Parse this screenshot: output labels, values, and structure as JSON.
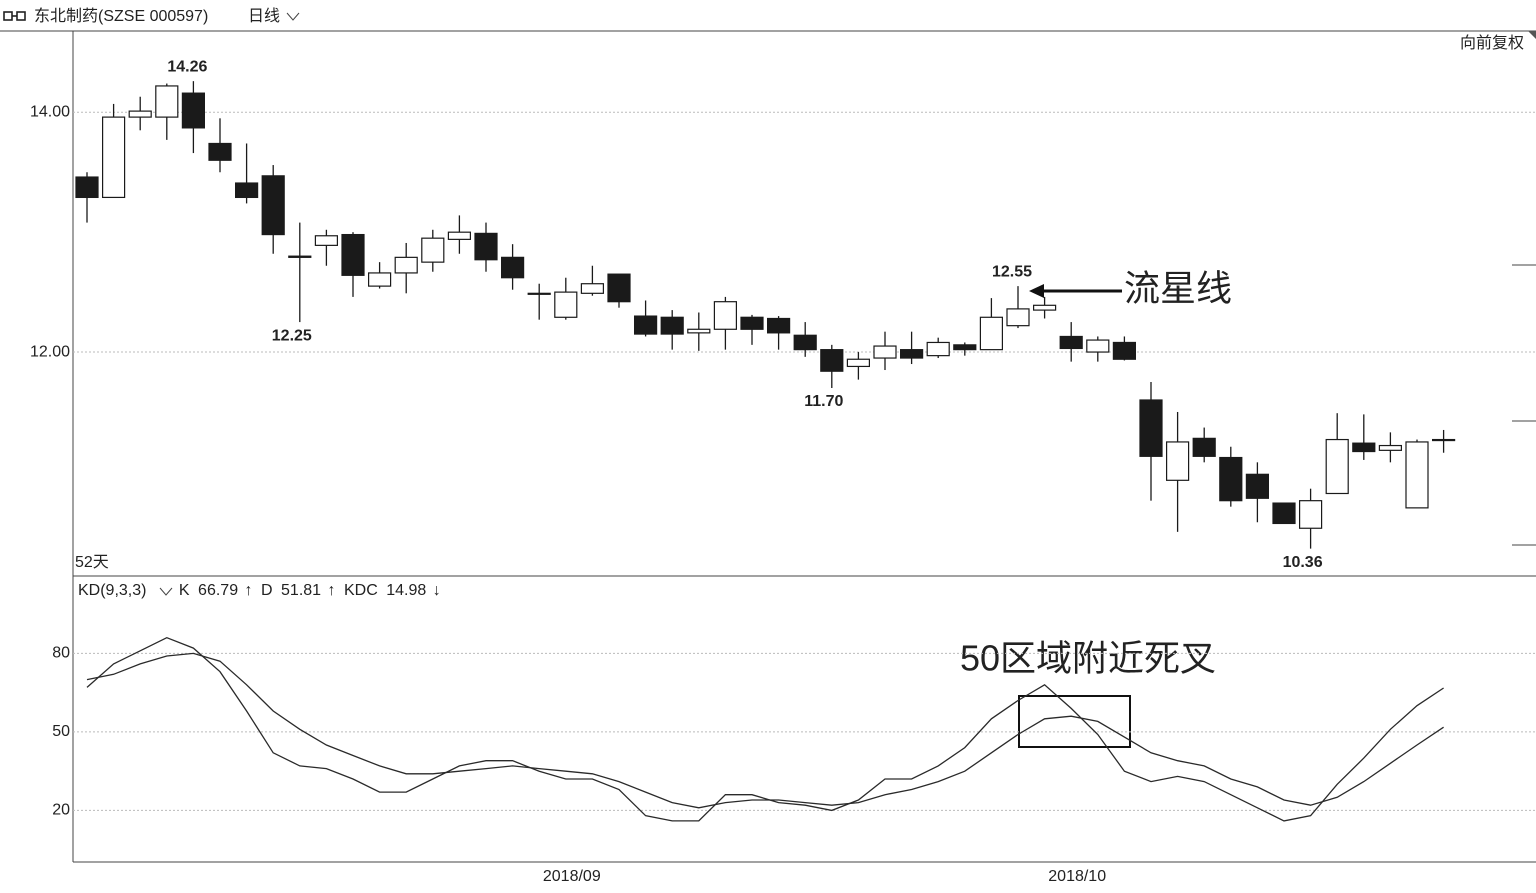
{
  "header": {
    "title": "东北制药(SZSE 000597)",
    "period": "日线"
  },
  "chart_data": [
    {
      "type": "candlestick",
      "adjust": "向前复权",
      "period_label": "52天",
      "up_color": "#ffffff",
      "down_color": "#1a1a1a",
      "edge_color": "#1a1a1a",
      "open": [
        13.46,
        13.29,
        13.96,
        13.96,
        14.16,
        13.74,
        13.41,
        13.47,
        12.8,
        12.89,
        12.98,
        12.55,
        12.66,
        12.75,
        12.94,
        12.99,
        12.79,
        12.49,
        12.29,
        12.49,
        12.65,
        12.3,
        12.29,
        12.16,
        12.19,
        12.29,
        12.28,
        12.14,
        12.02,
        11.88,
        11.95,
        12.02,
        11.97,
        12.06,
        12.02,
        12.22,
        12.35,
        12.13,
        12.0,
        12.08,
        11.6,
        10.93,
        11.28,
        11.12,
        10.98,
        10.74,
        10.53,
        10.82,
        11.24,
        11.18,
        10.7,
        11.27
      ],
      "high": [
        13.5,
        14.07,
        14.13,
        14.24,
        14.26,
        13.95,
        13.74,
        13.56,
        13.08,
        13.02,
        13.0,
        12.75,
        12.91,
        13.02,
        13.14,
        13.08,
        12.9,
        12.57,
        12.62,
        12.72,
        12.65,
        12.43,
        12.35,
        12.33,
        12.46,
        12.31,
        12.3,
        12.25,
        12.06,
        12.0,
        12.17,
        12.17,
        12.12,
        12.08,
        12.45,
        12.55,
        12.46,
        12.25,
        12.13,
        12.13,
        11.75,
        11.5,
        11.37,
        11.21,
        11.08,
        10.74,
        10.86,
        11.49,
        11.48,
        11.33,
        11.27,
        11.35
      ],
      "low": [
        13.08,
        13.29,
        13.85,
        13.77,
        13.66,
        13.5,
        13.24,
        12.82,
        12.25,
        12.72,
        12.46,
        12.53,
        12.49,
        12.67,
        12.82,
        12.67,
        12.52,
        12.27,
        12.27,
        12.47,
        12.37,
        12.13,
        12.02,
        12.01,
        12.02,
        12.06,
        12.02,
        11.96,
        11.7,
        11.77,
        11.85,
        11.9,
        11.95,
        11.97,
        12.02,
        12.2,
        12.28,
        11.92,
        11.92,
        11.93,
        10.76,
        10.5,
        11.08,
        10.71,
        10.58,
        10.57,
        10.36,
        10.82,
        11.1,
        11.08,
        10.7,
        11.16
      ],
      "close": [
        13.29,
        13.96,
        14.01,
        14.22,
        13.87,
        13.6,
        13.29,
        12.98,
        12.79,
        12.97,
        12.64,
        12.66,
        12.79,
        12.95,
        13.0,
        12.77,
        12.62,
        12.49,
        12.5,
        12.57,
        12.42,
        12.15,
        12.15,
        12.19,
        12.42,
        12.19,
        12.16,
        12.02,
        11.84,
        11.94,
        12.05,
        11.95,
        12.08,
        12.02,
        12.29,
        12.36,
        12.39,
        12.03,
        12.1,
        11.94,
        11.13,
        11.25,
        11.13,
        10.76,
        10.78,
        10.57,
        10.76,
        11.27,
        11.17,
        11.22,
        11.25,
        11.27
      ],
      "high_labels": [
        null,
        null,
        null,
        null,
        "14.26",
        null,
        null,
        null,
        null,
        null,
        null,
        null,
        null,
        null,
        null,
        null,
        null,
        null,
        null,
        null,
        null,
        null,
        null,
        null,
        null,
        null,
        null,
        null,
        null,
        null,
        null,
        null,
        null,
        null,
        null,
        "12.55",
        null,
        null,
        null,
        null,
        null,
        null,
        null,
        null,
        null,
        null,
        null,
        null,
        null,
        null,
        null,
        null
      ],
      "low_labels": [
        null,
        null,
        null,
        null,
        null,
        null,
        null,
        null,
        "12.25",
        null,
        null,
        null,
        null,
        null,
        null,
        null,
        null,
        null,
        null,
        null,
        null,
        null,
        null,
        null,
        null,
        null,
        null,
        null,
        "11.70",
        null,
        null,
        null,
        null,
        null,
        null,
        null,
        null,
        null,
        null,
        null,
        null,
        null,
        null,
        null,
        null,
        null,
        "10.36",
        null,
        null,
        null,
        null,
        null
      ],
      "ylim": [
        10.14,
        14.67
      ],
      "yticks": [
        {
          "value": 12,
          "label": "12.00"
        },
        {
          "value": 14,
          "label": "14.00"
        }
      ],
      "grid": true,
      "annotation": "流星线"
    },
    {
      "type": "line",
      "title": "KD(9,3,3)",
      "categories": [
        null,
        null,
        null,
        null,
        null,
        null,
        null,
        null,
        null,
        null,
        null,
        null,
        null,
        null,
        null,
        null,
        null,
        null,
        "2018/09",
        null,
        null,
        null,
        null,
        null,
        null,
        null,
        null,
        null,
        null,
        null,
        null,
        null,
        null,
        null,
        null,
        null,
        null,
        "2018/10",
        null,
        null,
        null,
        null,
        null,
        null,
        null,
        null,
        null,
        null,
        null,
        null,
        null,
        null
      ],
      "series": [
        {
          "name": "K",
          "color": "#2a2a2a",
          "trend": "↑",
          "values": [
            67,
            76,
            81,
            86,
            82,
            73,
            58,
            42,
            37,
            36,
            32,
            27,
            27,
            32,
            37,
            39,
            39,
            35,
            32,
            32,
            28,
            18,
            16,
            16,
            26,
            26,
            23,
            22,
            20,
            24,
            32,
            32,
            37,
            44,
            55,
            62,
            68,
            59,
            49,
            35,
            31,
            33,
            31,
            26,
            21,
            16,
            18,
            30,
            40,
            51,
            60,
            66.79
          ]
        },
        {
          "name": "D",
          "color": "#2a2a2a",
          "trend": "↑",
          "values": [
            70,
            72,
            76,
            79,
            80,
            77,
            68,
            58,
            51,
            45,
            41,
            37,
            34,
            34,
            35,
            36,
            37,
            36,
            35,
            34,
            31,
            27,
            23,
            21,
            23,
            24,
            24,
            23,
            22,
            23,
            26,
            28,
            31,
            35,
            42,
            49,
            55,
            56,
            54,
            48,
            42,
            39,
            37,
            32,
            29,
            24,
            22,
            25,
            31,
            38,
            45,
            51.81
          ]
        }
      ],
      "kdc": {
        "name": "KDC",
        "value": 14.98,
        "trend": "↓"
      },
      "ylim": [
        0.3,
        108.8
      ],
      "yticks": [
        20,
        50,
        80
      ],
      "grid": true,
      "annotation": "50区域附近死叉"
    }
  ]
}
